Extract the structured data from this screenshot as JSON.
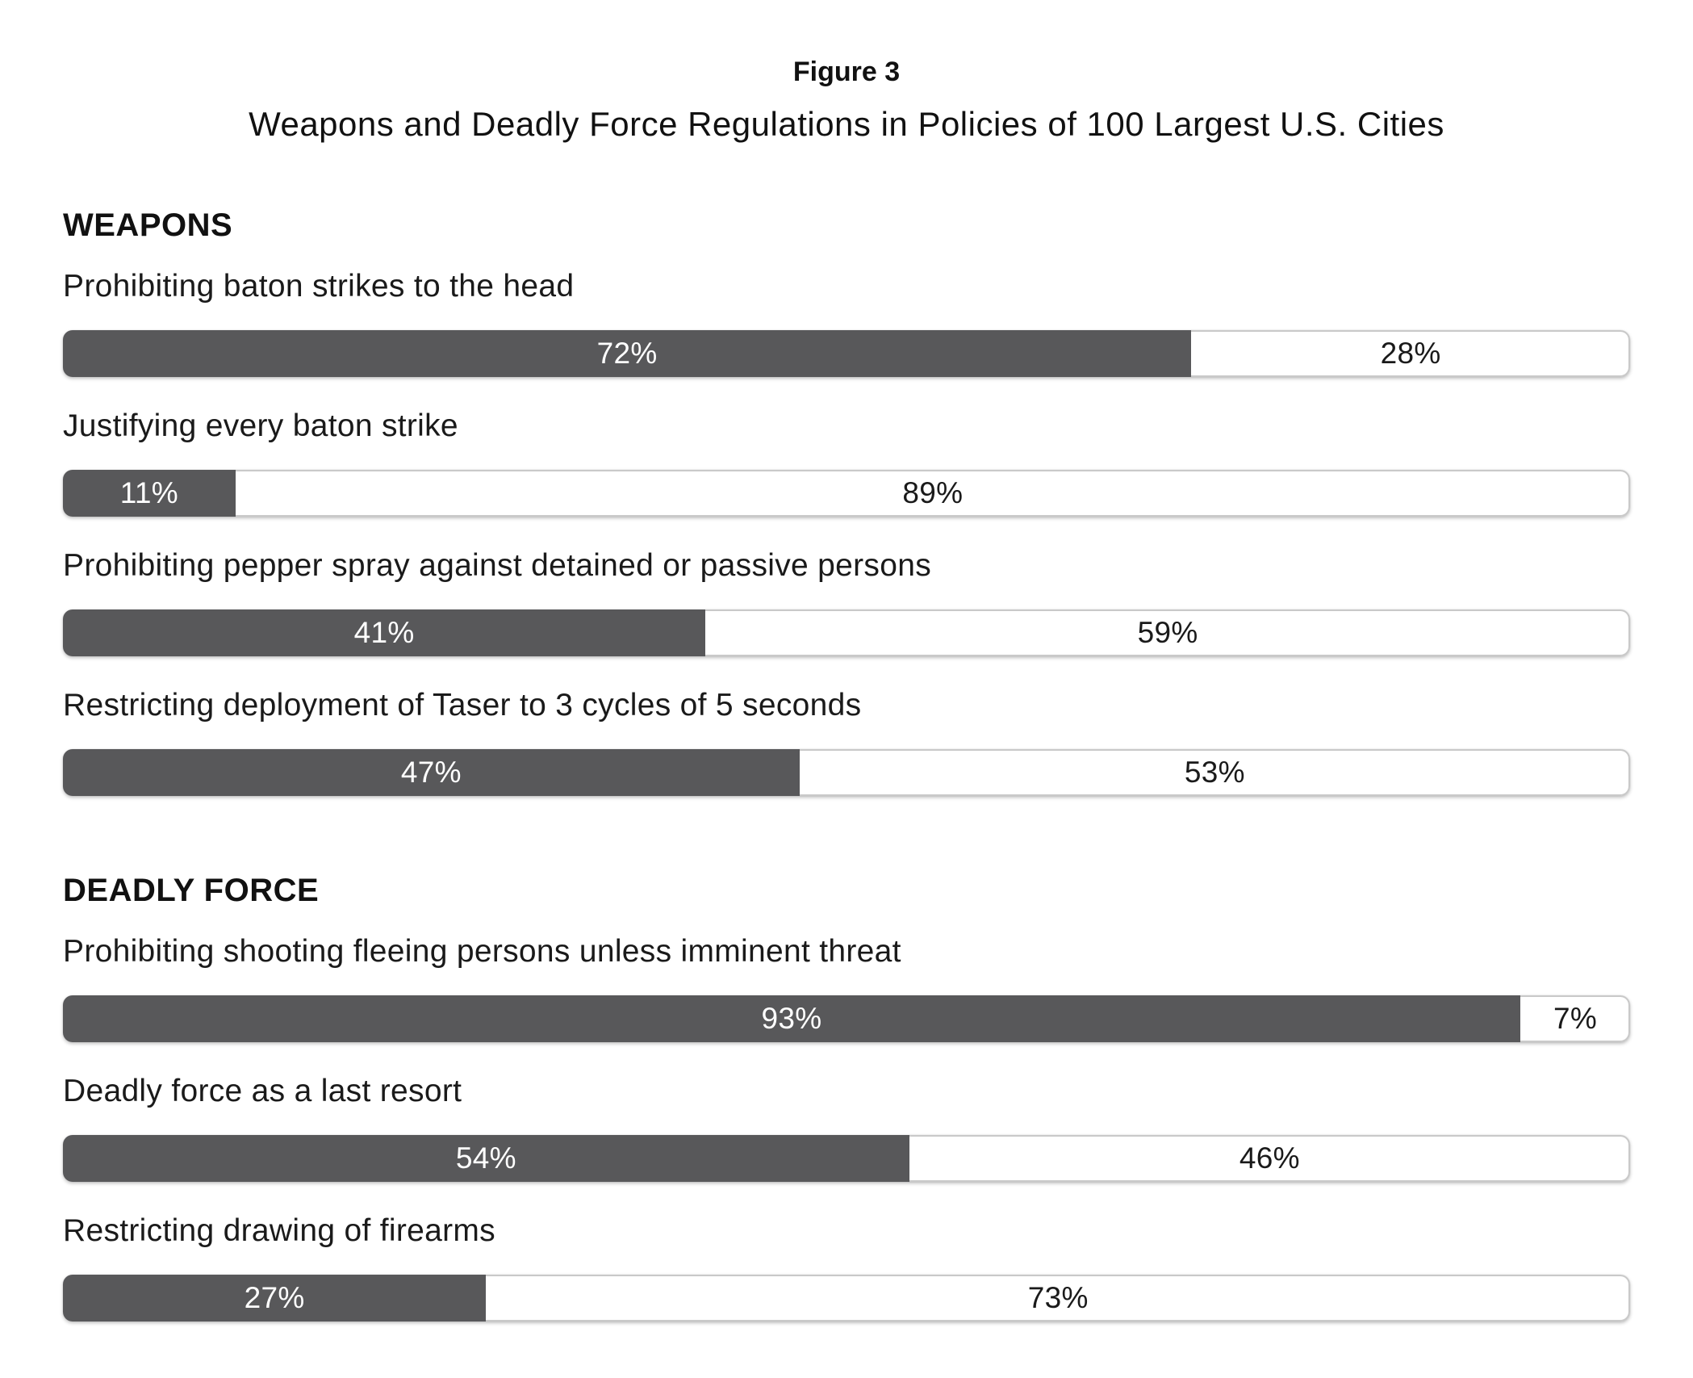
{
  "figure": {
    "number": "Figure 3",
    "title": "Weapons and Deadly Force Regulations in Policies of 100 Largest U.S. Cities"
  },
  "colors": {
    "background": "#ffffff",
    "bar_fill": "#58585a",
    "bar_track_background": "#ffffff",
    "bar_track_border": "#c9c9c9",
    "value_text": "#ffffff",
    "remainder_text": "#1a1a1a",
    "heading_text": "#111111"
  },
  "chart_data": {
    "type": "bar",
    "orientation": "horizontal",
    "unit": "percent",
    "xlim": [
      0,
      100
    ],
    "grid": false,
    "legend": "none",
    "title": "Weapons and Deadly Force Regulations in Policies of 100 Largest U.S. Cities",
    "subtitle": "Figure 3",
    "sections": [
      {
        "header": "WEAPONS",
        "items": [
          {
            "label": "Prohibiting baton strikes to the head",
            "value": 72,
            "remainder": 28,
            "value_label": "72%",
            "remainder_label": "28%"
          },
          {
            "label": "Justifying every baton strike",
            "value": 11,
            "remainder": 89,
            "value_label": "11%",
            "remainder_label": "89%"
          },
          {
            "label": "Prohibiting pepper spray against detained or passive persons",
            "value": 41,
            "remainder": 59,
            "value_label": "41%",
            "remainder_label": "59%"
          },
          {
            "label": "Restricting deployment of Taser to 3 cycles of 5 seconds",
            "value": 47,
            "remainder": 53,
            "value_label": "47%",
            "remainder_label": "53%"
          }
        ]
      },
      {
        "header": "DEADLY FORCE",
        "items": [
          {
            "label": "Prohibiting shooting fleeing persons unless imminent threat",
            "value": 93,
            "remainder": 7,
            "value_label": "93%",
            "remainder_label": "7%"
          },
          {
            "label": "Deadly force as a last resort",
            "value": 54,
            "remainder": 46,
            "value_label": "54%",
            "remainder_label": "46%"
          },
          {
            "label": "Restricting drawing of firearms",
            "value": 27,
            "remainder": 73,
            "value_label": "27%",
            "remainder_label": "73%"
          }
        ]
      }
    ]
  }
}
